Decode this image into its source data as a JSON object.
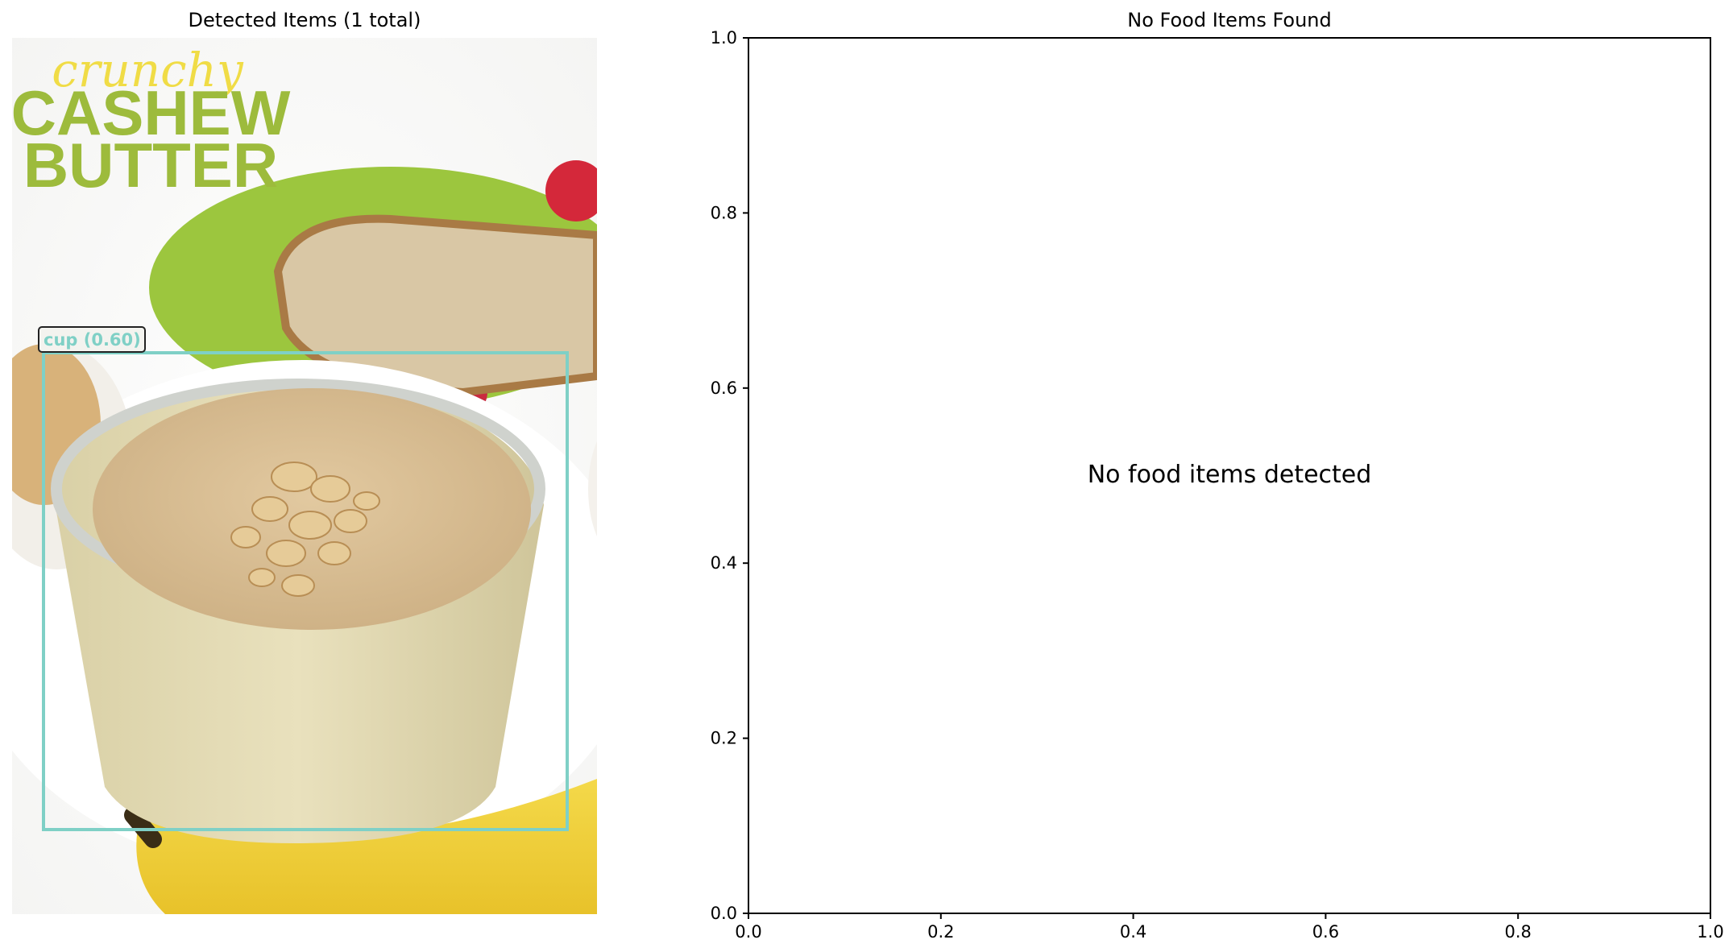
{
  "left_panel": {
    "title": "Detected Items (1 total)",
    "photo": {
      "overlay_script": "crunchy",
      "overlay_line1": "CASHEW",
      "overlay_line2": "BUTTER"
    },
    "detections": [
      {
        "label": "cup (0.60)",
        "color": "#7fd0c6"
      }
    ]
  },
  "chart_data": {
    "type": "scatter",
    "title": "No Food Items Found",
    "xlabel": "",
    "ylabel": "",
    "xlim": [
      0.0,
      1.0
    ],
    "ylim": [
      0.0,
      1.0
    ],
    "xticks": [
      "0.0",
      "0.2",
      "0.4",
      "0.6",
      "0.8",
      "1.0"
    ],
    "yticks": [
      "0.0",
      "0.2",
      "0.4",
      "0.6",
      "0.8",
      "1.0"
    ],
    "series": [],
    "annotation": {
      "text": "No food items detected",
      "x": 0.5,
      "y": 0.5
    },
    "grid": false
  }
}
